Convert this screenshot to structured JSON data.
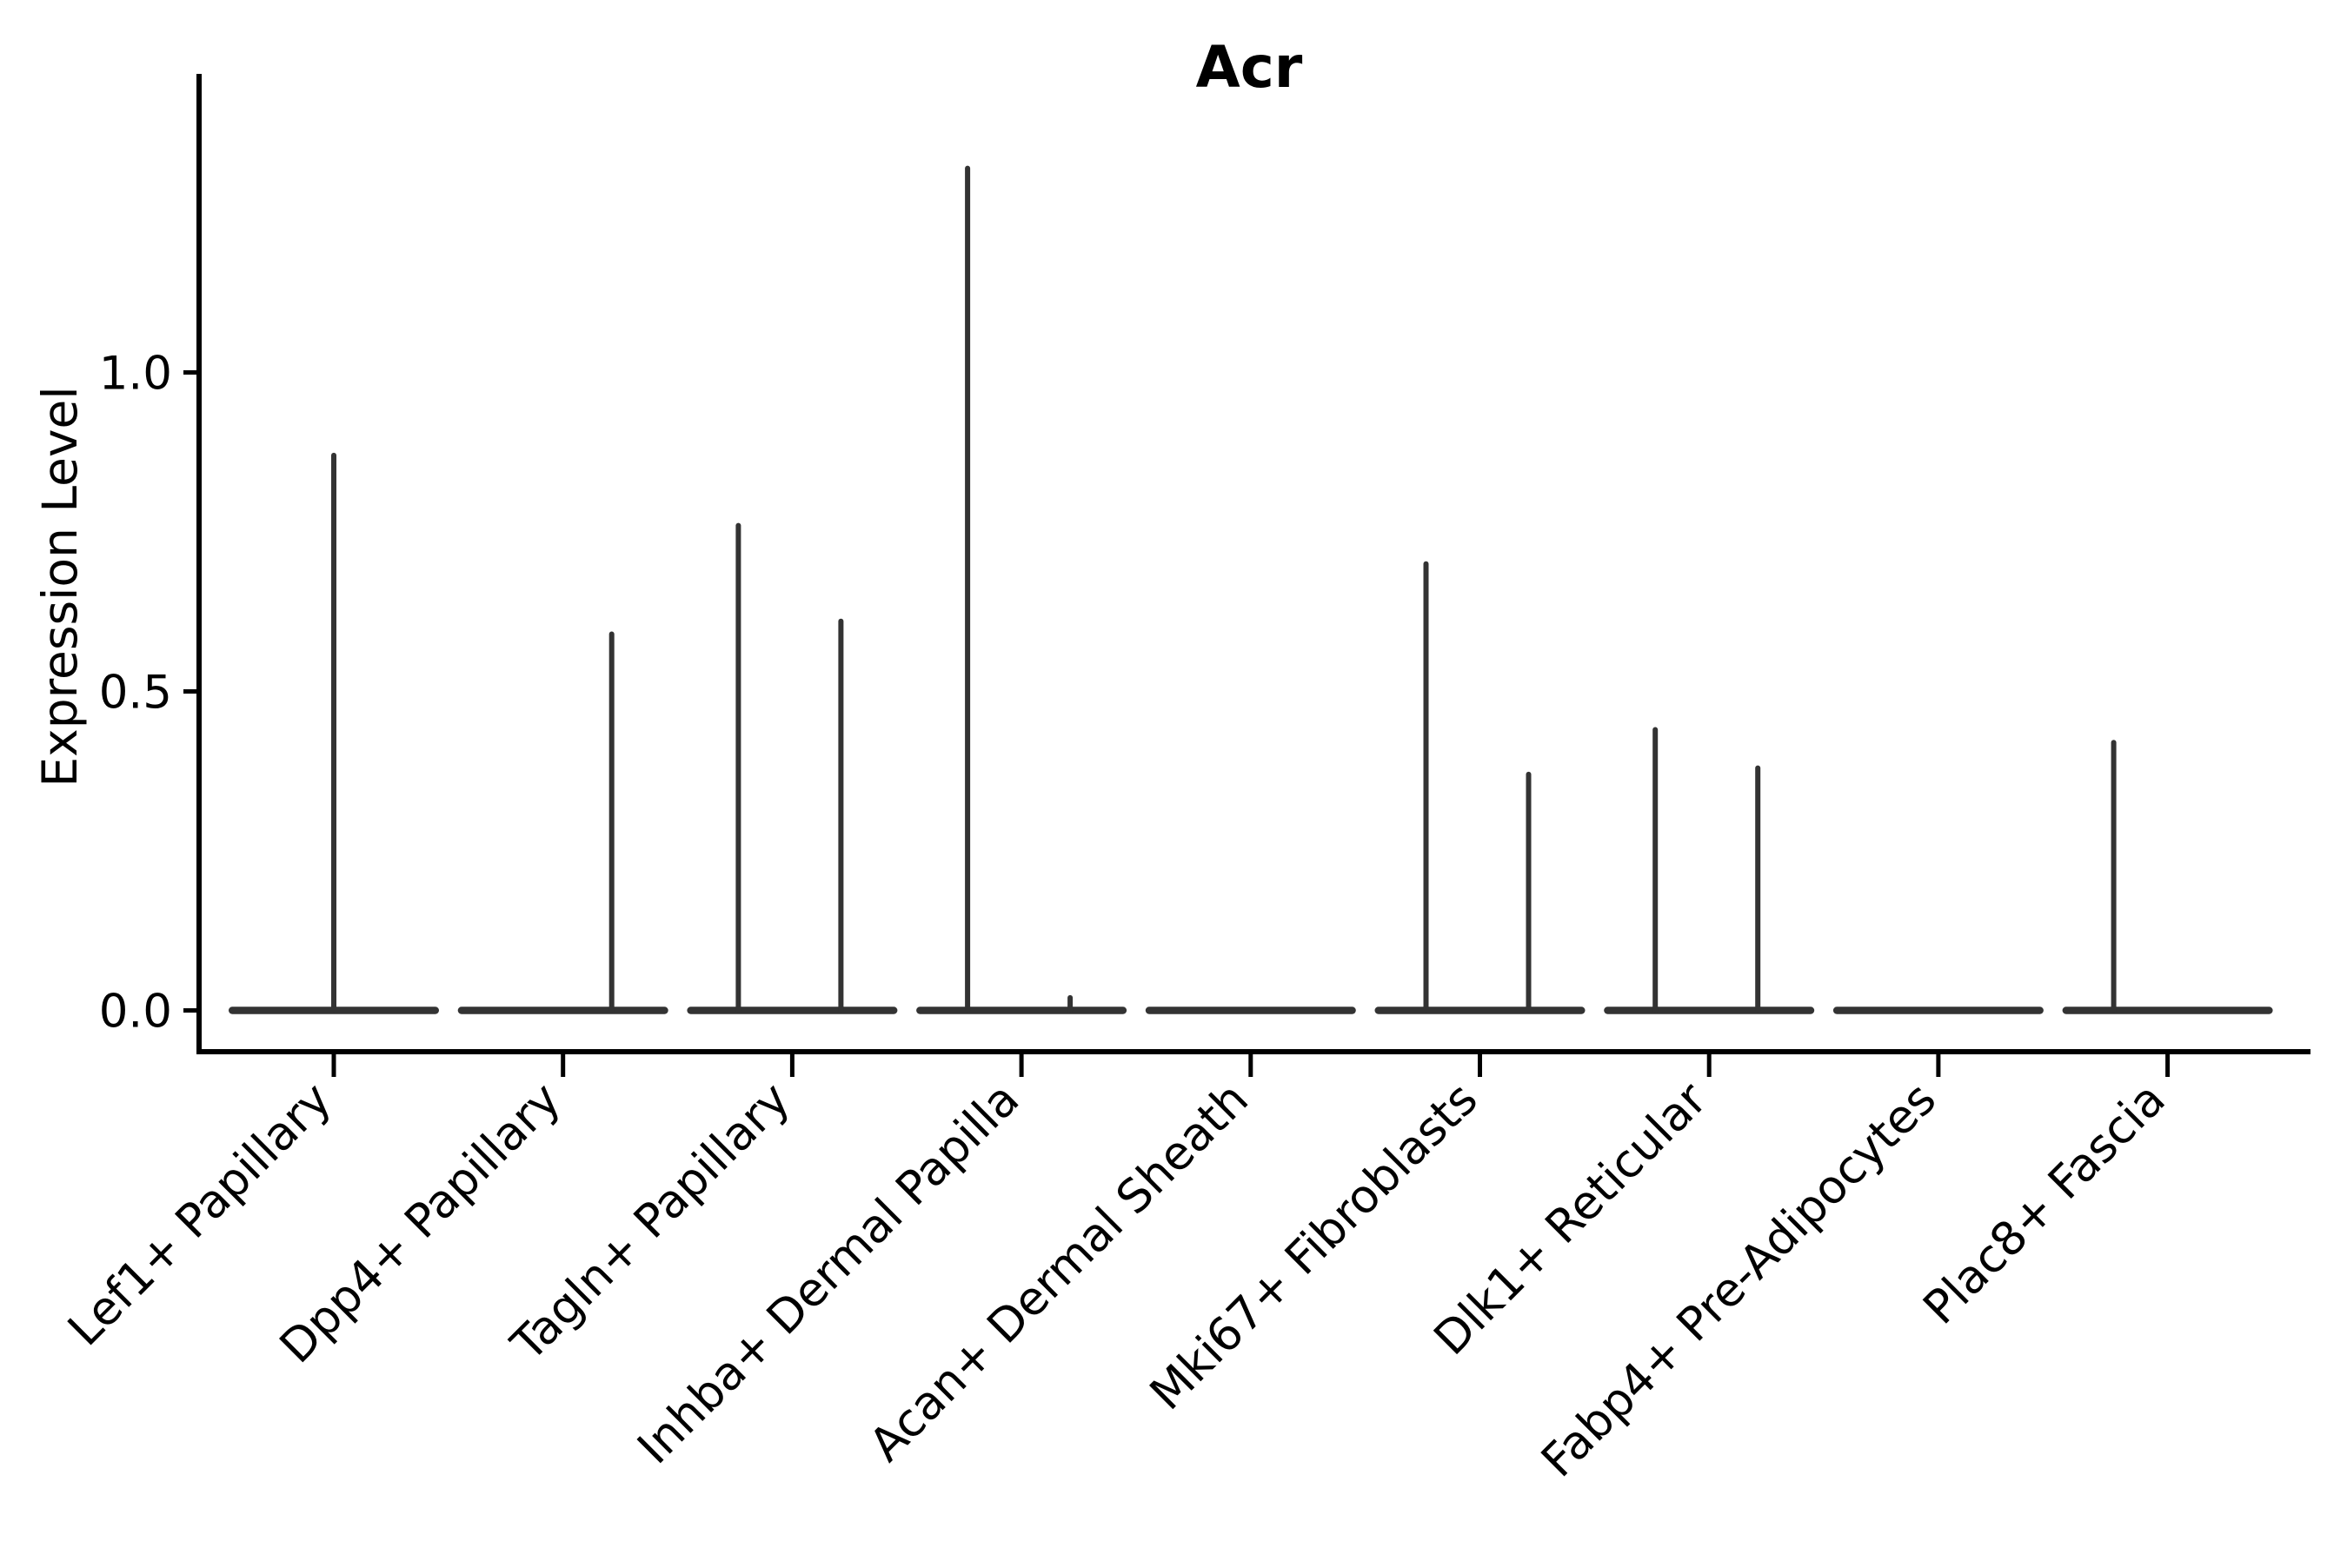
{
  "chart_data": {
    "type": "violin",
    "title": "Acr",
    "xlabel": "",
    "ylabel": "Expression Level",
    "categories": [
      "Lef1+ Papillary",
      "Dpp4+ Papillary",
      "Tagln+ Papillary",
      "Inhba+ Dermal Papilla",
      "Acan+ Dermal Sheath",
      "Mki67+ Fibroblasts",
      "Dlk1+ Reticular",
      "Fabp4+ Pre-Adipocytes",
      "Plac8+ Fascia"
    ],
    "ytick_labels": [
      "0.0",
      "0.5",
      "1.0"
    ],
    "ytick_values": [
      0.0,
      0.5,
      1.0
    ],
    "ylim": [
      -0.09,
      1.47
    ],
    "grid": false,
    "legend": "none",
    "x_tick_rotation_deg": 45,
    "colors": {
      "violin": "#333333",
      "axis": "#000000",
      "text": "#000000",
      "background": "#ffffff"
    },
    "series": [
      {
        "name": "Lef1+ Papillary",
        "baseline_value": 0,
        "spikes": [
          {
            "position": "center",
            "max": 0.87
          }
        ]
      },
      {
        "name": "Dpp4+ Papillary",
        "baseline_value": 0,
        "spikes": [
          {
            "position": "right",
            "max": 0.59
          }
        ]
      },
      {
        "name": "Tagln+ Papillary",
        "baseline_value": 0,
        "spikes": [
          {
            "position": "left",
            "max": 0.76
          },
          {
            "position": "right",
            "max": 0.61
          }
        ]
      },
      {
        "name": "Inhba+ Dermal Papilla",
        "baseline_value": 0,
        "spikes": [
          {
            "position": "left",
            "max": 1.32
          },
          {
            "position": "right",
            "max": 0.02
          }
        ]
      },
      {
        "name": "Acan+ Dermal Sheath",
        "baseline_value": 0,
        "spikes": []
      },
      {
        "name": "Mki67+ Fibroblasts",
        "baseline_value": 0,
        "spikes": [
          {
            "position": "left",
            "max": 0.7
          },
          {
            "position": "right",
            "max": 0.37
          }
        ]
      },
      {
        "name": "Dlk1+ Reticular",
        "baseline_value": 0,
        "spikes": [
          {
            "position": "left",
            "max": 0.44
          },
          {
            "position": "right",
            "max": 0.38
          }
        ]
      },
      {
        "name": "Fabp4+ Pre-Adipocytes",
        "baseline_value": 0,
        "spikes": []
      },
      {
        "name": "Plac8+ Fascia",
        "baseline_value": 0,
        "spikes": [
          {
            "position": "left",
            "max": 0.42
          }
        ]
      }
    ]
  }
}
